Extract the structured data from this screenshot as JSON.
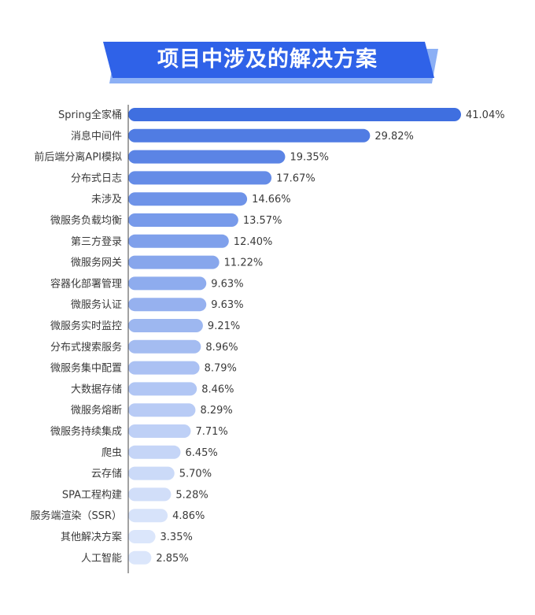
{
  "title": "项目中涉及的解决方案",
  "colors": {
    "banner_main": "#2f62e8",
    "banner_shadow": "#8cb0f5",
    "bar_dark": "#3f6fe0",
    "bar_light": "#dbe6fb",
    "axis": "#444444"
  },
  "chart_data": {
    "type": "bar",
    "orientation": "horizontal",
    "title": "项目中涉及的解决方案",
    "categories": [
      "Spring全家桶",
      "消息中间件",
      "前后端分离API模拟",
      "分布式日志",
      "未涉及",
      "微服务负载均衡",
      "第三方登录",
      "微服务网关",
      "容器化部署管理",
      "微服务认证",
      "微服务实时监控",
      "分布式搜索服务",
      "微服务集中配置",
      "大数据存储",
      "微服务熔断",
      "微服务持续集成",
      "爬虫",
      "云存储",
      "SPA工程构建",
      "服务端渲染（SSR）",
      "其他解决方案",
      "人工智能"
    ],
    "values": [
      41.04,
      29.82,
      19.35,
      17.67,
      14.66,
      13.57,
      12.4,
      11.22,
      9.63,
      9.63,
      9.21,
      8.96,
      8.79,
      8.46,
      8.29,
      7.71,
      6.45,
      5.7,
      5.28,
      4.86,
      3.35,
      2.85
    ],
    "value_labels": [
      "41.04%",
      "29.82%",
      "19.35%",
      "17.67%",
      "14.66%",
      "13.57%",
      "12.40%",
      "11.22%",
      "9.63%",
      "9.63%",
      "9.21%",
      "8.96%",
      "8.79%",
      "8.46%",
      "8.29%",
      "7.71%",
      "6.45%",
      "5.70%",
      "5.28%",
      "4.86%",
      "3.35%",
      "2.85%"
    ],
    "unit": "%",
    "xlim": [
      0,
      41.04
    ],
    "grid": false,
    "legend": "none"
  }
}
